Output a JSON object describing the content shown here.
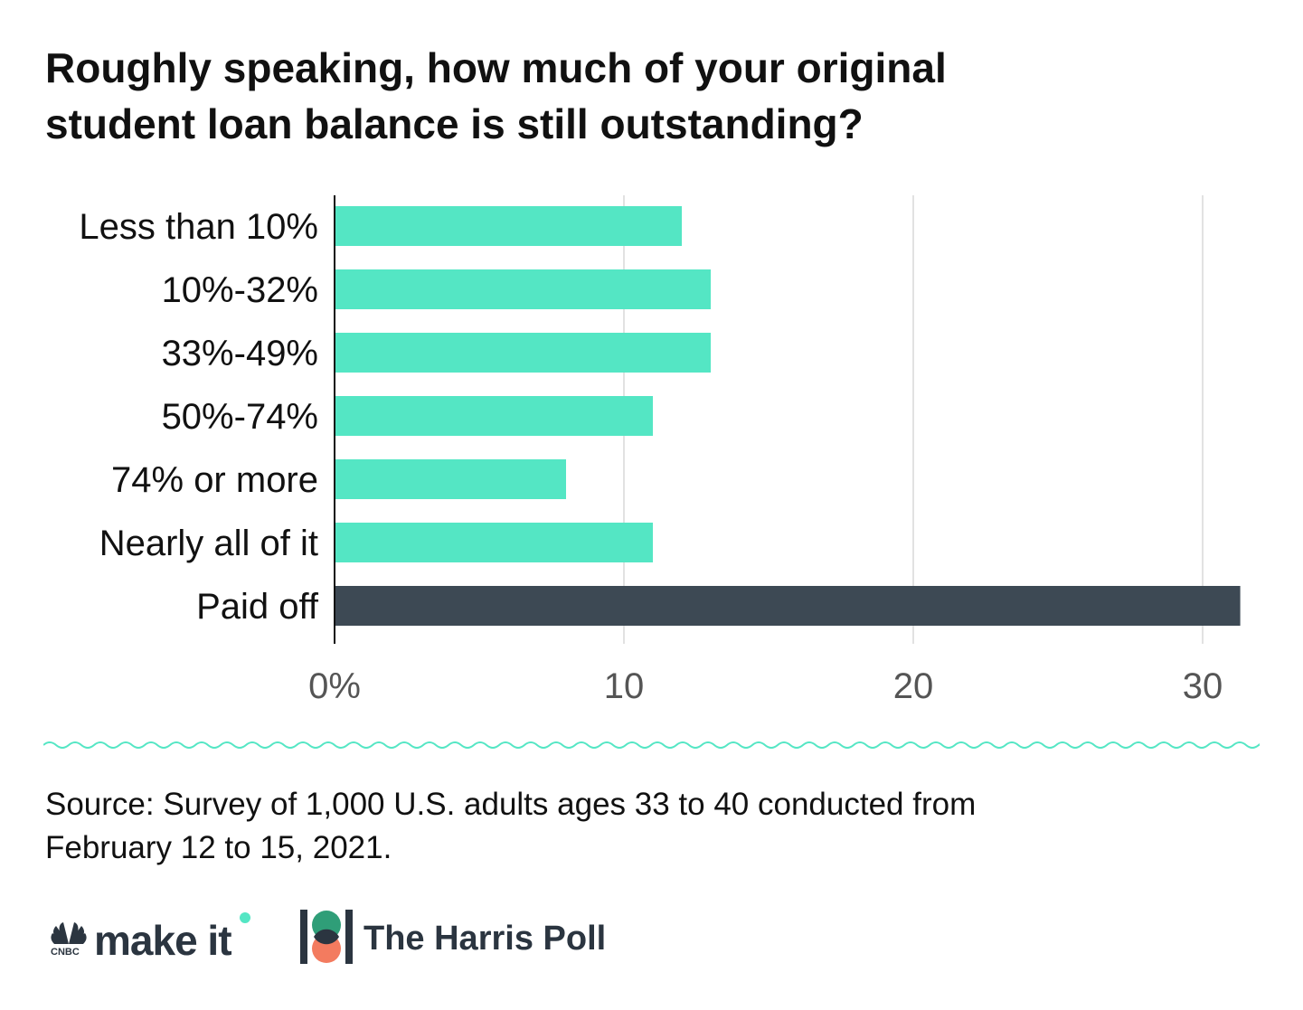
{
  "title_lines": [
    "Roughly speaking, how much of your original",
    "student loan balance is still outstanding?"
  ],
  "chart_data": {
    "type": "bar",
    "orientation": "horizontal",
    "title": "Roughly speaking, how much of your original student loan balance is still outstanding?",
    "categories": [
      "Less than 10%",
      "10%-32%",
      "33%-49%",
      "50%-74%",
      "74% or more",
      "Nearly all of it",
      "Paid off"
    ],
    "values": [
      12,
      13,
      13,
      11,
      8,
      11,
      31.3
    ],
    "value_unit": "%",
    "xlim": [
      0,
      31.5
    ],
    "x_ticks": [
      0,
      10,
      20,
      30
    ],
    "x_tick_labels": [
      "0%",
      "10",
      "20",
      "30"
    ],
    "grid": "vertical",
    "colors": {
      "default_bar": "#54e6c4",
      "highlight_bar": "#3d4954",
      "highlight_category": "Paid off",
      "grid": "#d9d9d9",
      "axis": "#111111",
      "tick_text": "#555555"
    }
  },
  "divider": {
    "style": "wave",
    "color": "#54e6c4"
  },
  "source_lines": [
    "Source: Survey of 1,000 U.S. adults ages 33 to 40 conducted from",
    "February 12 to 15, 2021."
  ],
  "logos": {
    "cnbc_small": "CNBC",
    "cnbc_brand": "make it",
    "cnbc_icon": "peacock-icon",
    "harris_brand": "The Harris Poll",
    "harris_icon": "harris-poll-icon",
    "accent_teal": "#54e6c4",
    "harris_green": "#2f9e78",
    "harris_orange": "#f37b5f",
    "dark": "#2b3540"
  }
}
